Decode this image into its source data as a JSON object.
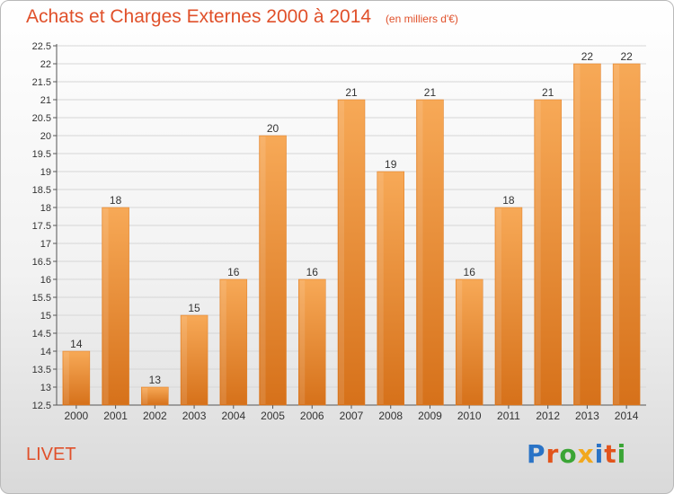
{
  "header": {
    "title": "Achats et Charges Externes 2000 à 2014",
    "unit": "(en milliers d'€)"
  },
  "footer": {
    "city": "LIVET",
    "logo": "Proxiti",
    "logo_colors": [
      "#2a73c6",
      "#e2541c",
      "#3aa535",
      "#f2a81d",
      "#2a73c6",
      "#e2541c",
      "#3aa535"
    ]
  },
  "colors": {
    "bar": "#f08a2b",
    "bar_light": "#f7a957",
    "text_accent": "#e0502a",
    "grid": "#d6d6d6"
  },
  "chart_data": {
    "type": "bar",
    "title": "Achats et Charges Externes 2000 à 2014",
    "categories": [
      "2000",
      "2001",
      "2002",
      "2003",
      "2004",
      "2005",
      "2006",
      "2007",
      "2008",
      "2009",
      "2010",
      "2011",
      "2012",
      "2013",
      "2014"
    ],
    "values": [
      14,
      18,
      13,
      15,
      16,
      20,
      16,
      21,
      19,
      21,
      16,
      18,
      21,
      22,
      22
    ],
    "ylim": [
      12.5,
      22.5
    ],
    "ystep": 0.5,
    "yticks": [
      "12.5",
      "13",
      "13.5",
      "14",
      "14.5",
      "15",
      "15.5",
      "16",
      "16.5",
      "17",
      "17.5",
      "18",
      "18.5",
      "19",
      "19.5",
      "20",
      "20.5",
      "21",
      "21.5",
      "22",
      "22.5"
    ],
    "grid": true,
    "legend": "none"
  }
}
